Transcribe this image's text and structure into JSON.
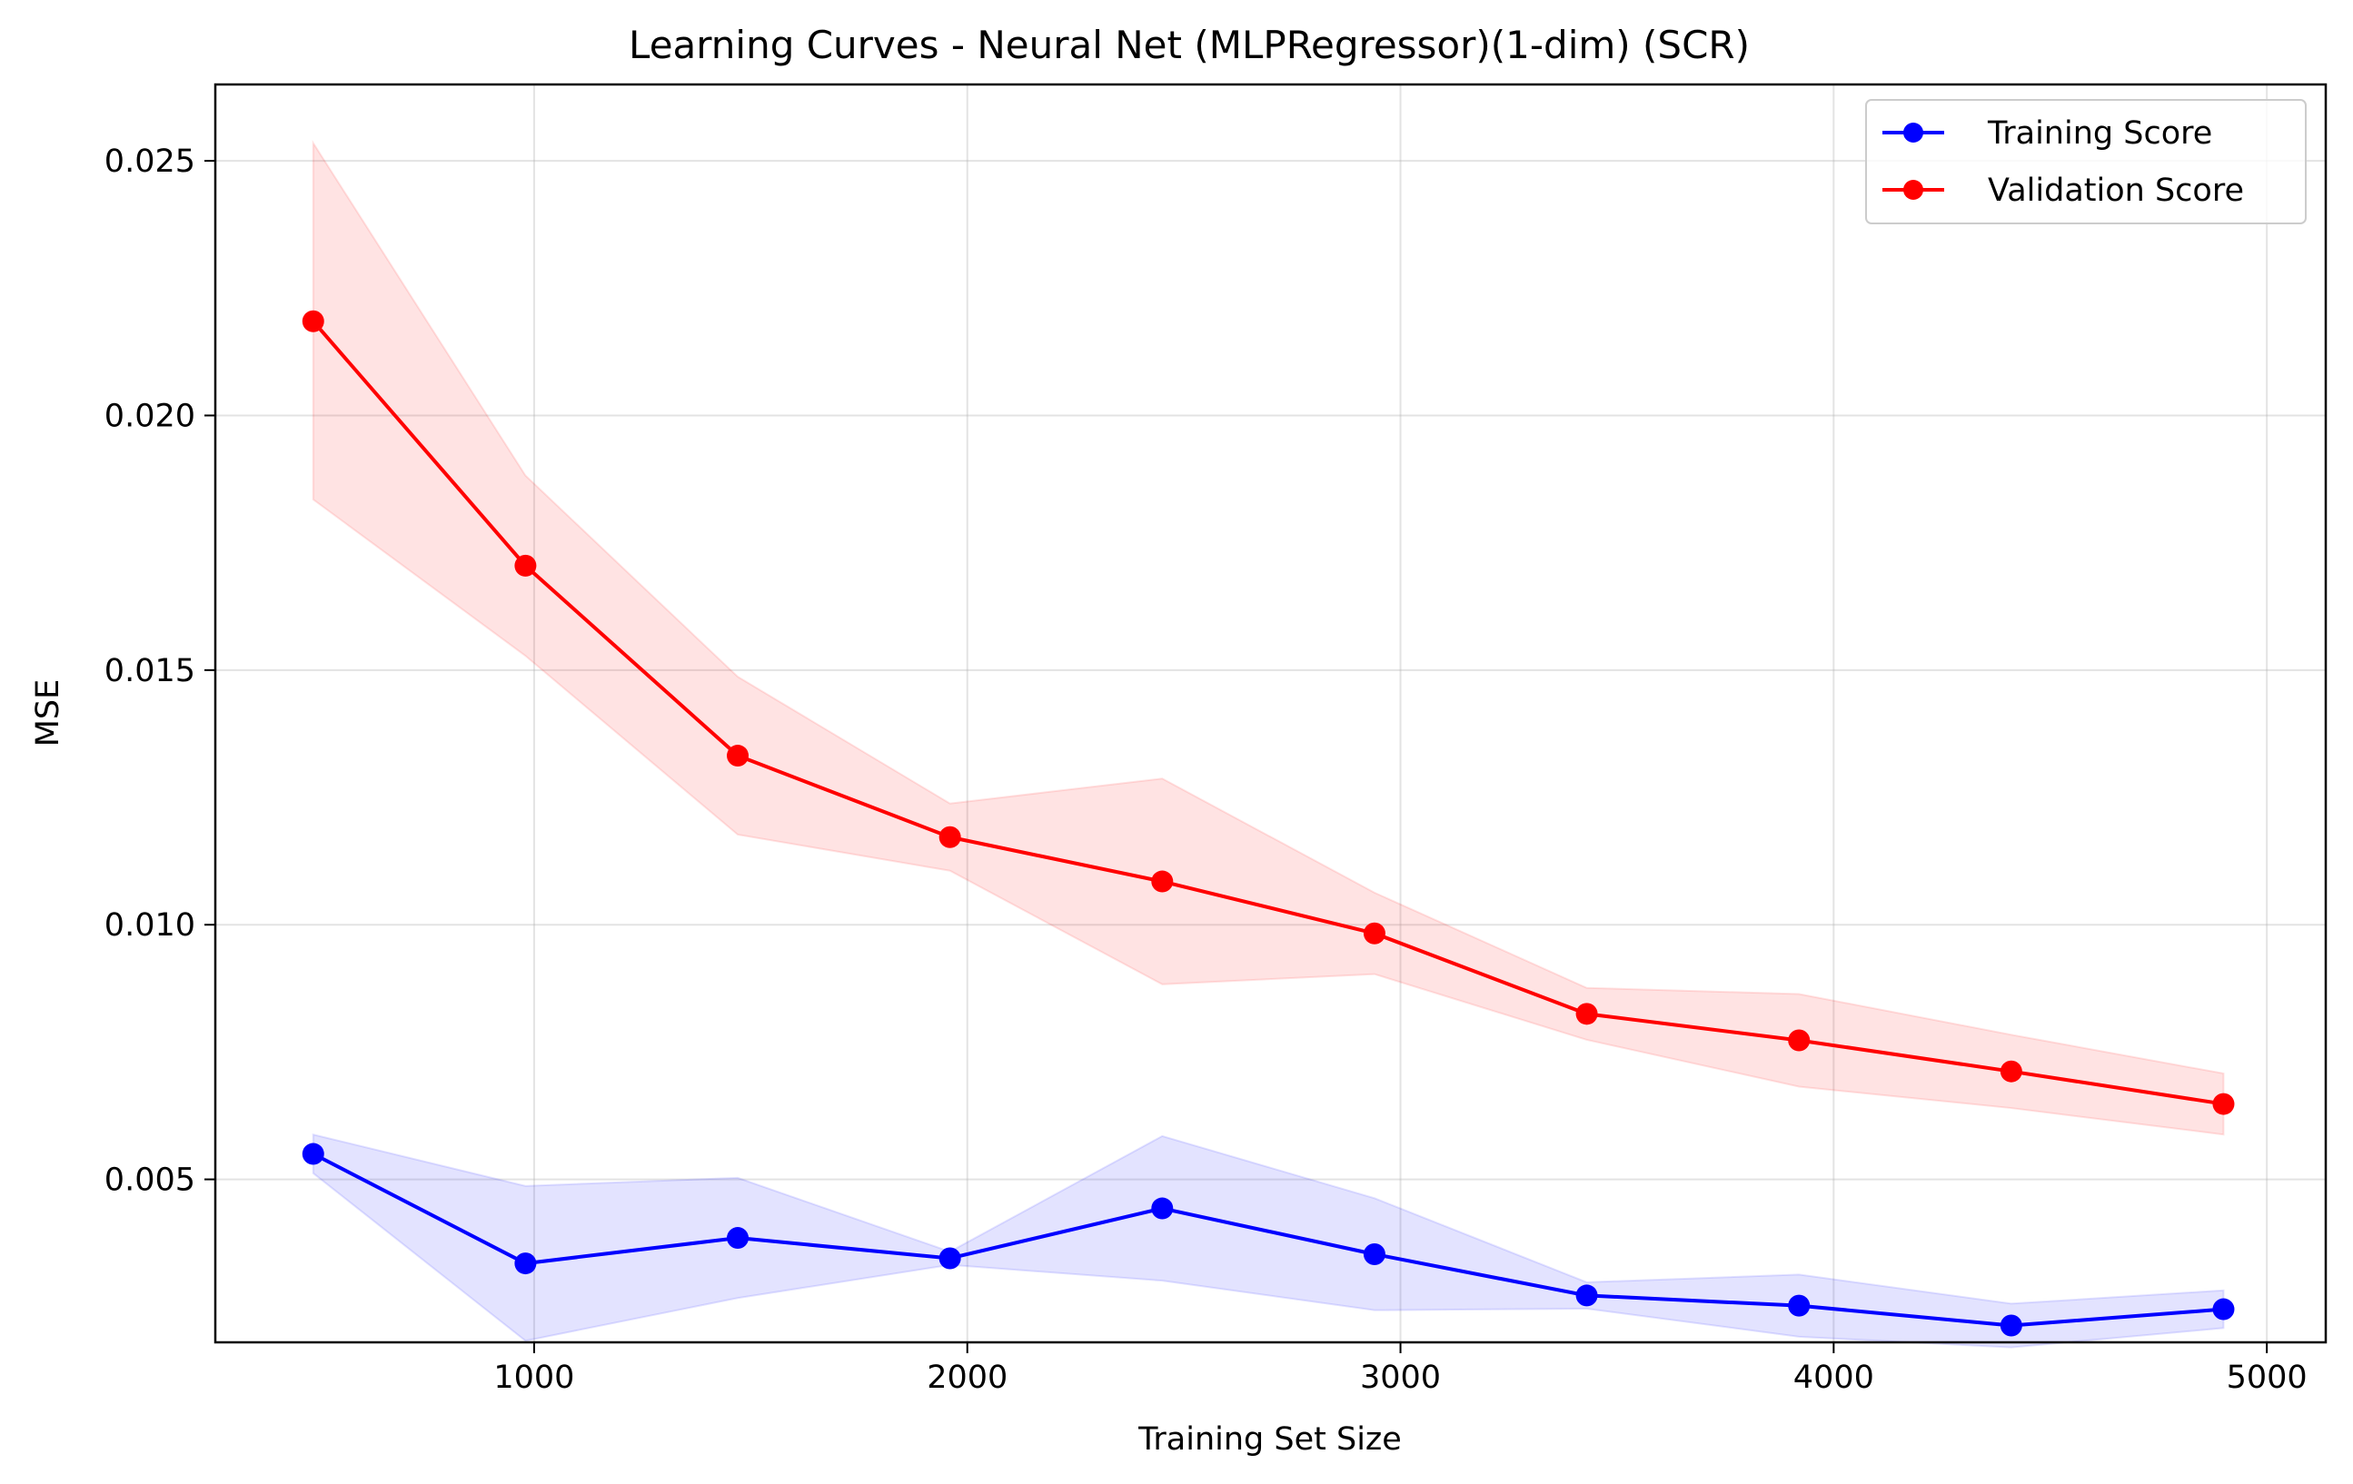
{
  "chart_data": {
    "type": "line",
    "title": "Learning Curves - Neural Net (MLPRegressor)(1-dim) (SCR)",
    "xlabel": "Training Set Size",
    "ylabel": "MSE",
    "xlim": [
      264,
      5136
    ],
    "ylim": [
      0.0018,
      0.0265
    ],
    "x_ticks": [
      1000,
      2000,
      3000,
      4000,
      5000
    ],
    "y_ticks": [
      0.005,
      0.01,
      0.015,
      0.02,
      0.025
    ],
    "y_tick_labels": [
      "0.005",
      "0.010",
      "0.015",
      "0.020",
      "0.025"
    ],
    "grid": true,
    "legend_position": "top-right",
    "x": [
      490,
      980,
      1470,
      1960,
      2450,
      2940,
      3430,
      3920,
      4410,
      4900
    ],
    "series": [
      {
        "name": "Training Score",
        "color": "#0000ff",
        "band_color": "#0000ff",
        "values": [
          0.0055,
          0.00335,
          0.00385,
          0.00345,
          0.00443,
          0.00353,
          0.00272,
          0.00252,
          0.00213,
          0.00245
        ],
        "upper": [
          0.00588,
          0.00487,
          0.00503,
          0.00358,
          0.00585,
          0.00463,
          0.00298,
          0.00313,
          0.00256,
          0.00282
        ],
        "lower": [
          0.00512,
          0.00183,
          0.00267,
          0.00332,
          0.00301,
          0.00243,
          0.00246,
          0.00191,
          0.0017,
          0.00208
        ]
      },
      {
        "name": "Validation Score",
        "color": "#ff0000",
        "band_color": "#ff0000",
        "values": [
          0.02185,
          0.01705,
          0.01332,
          0.01172,
          0.01085,
          0.00983,
          0.00825,
          0.00773,
          0.00712,
          0.00648
        ],
        "upper": [
          0.02535,
          0.01882,
          0.01487,
          0.01238,
          0.01287,
          0.01063,
          0.00876,
          0.00864,
          0.00784,
          0.00708
        ],
        "lower": [
          0.01835,
          0.01528,
          0.01177,
          0.01106,
          0.00883,
          0.00903,
          0.00774,
          0.00682,
          0.0064,
          0.00588
        ]
      }
    ]
  }
}
